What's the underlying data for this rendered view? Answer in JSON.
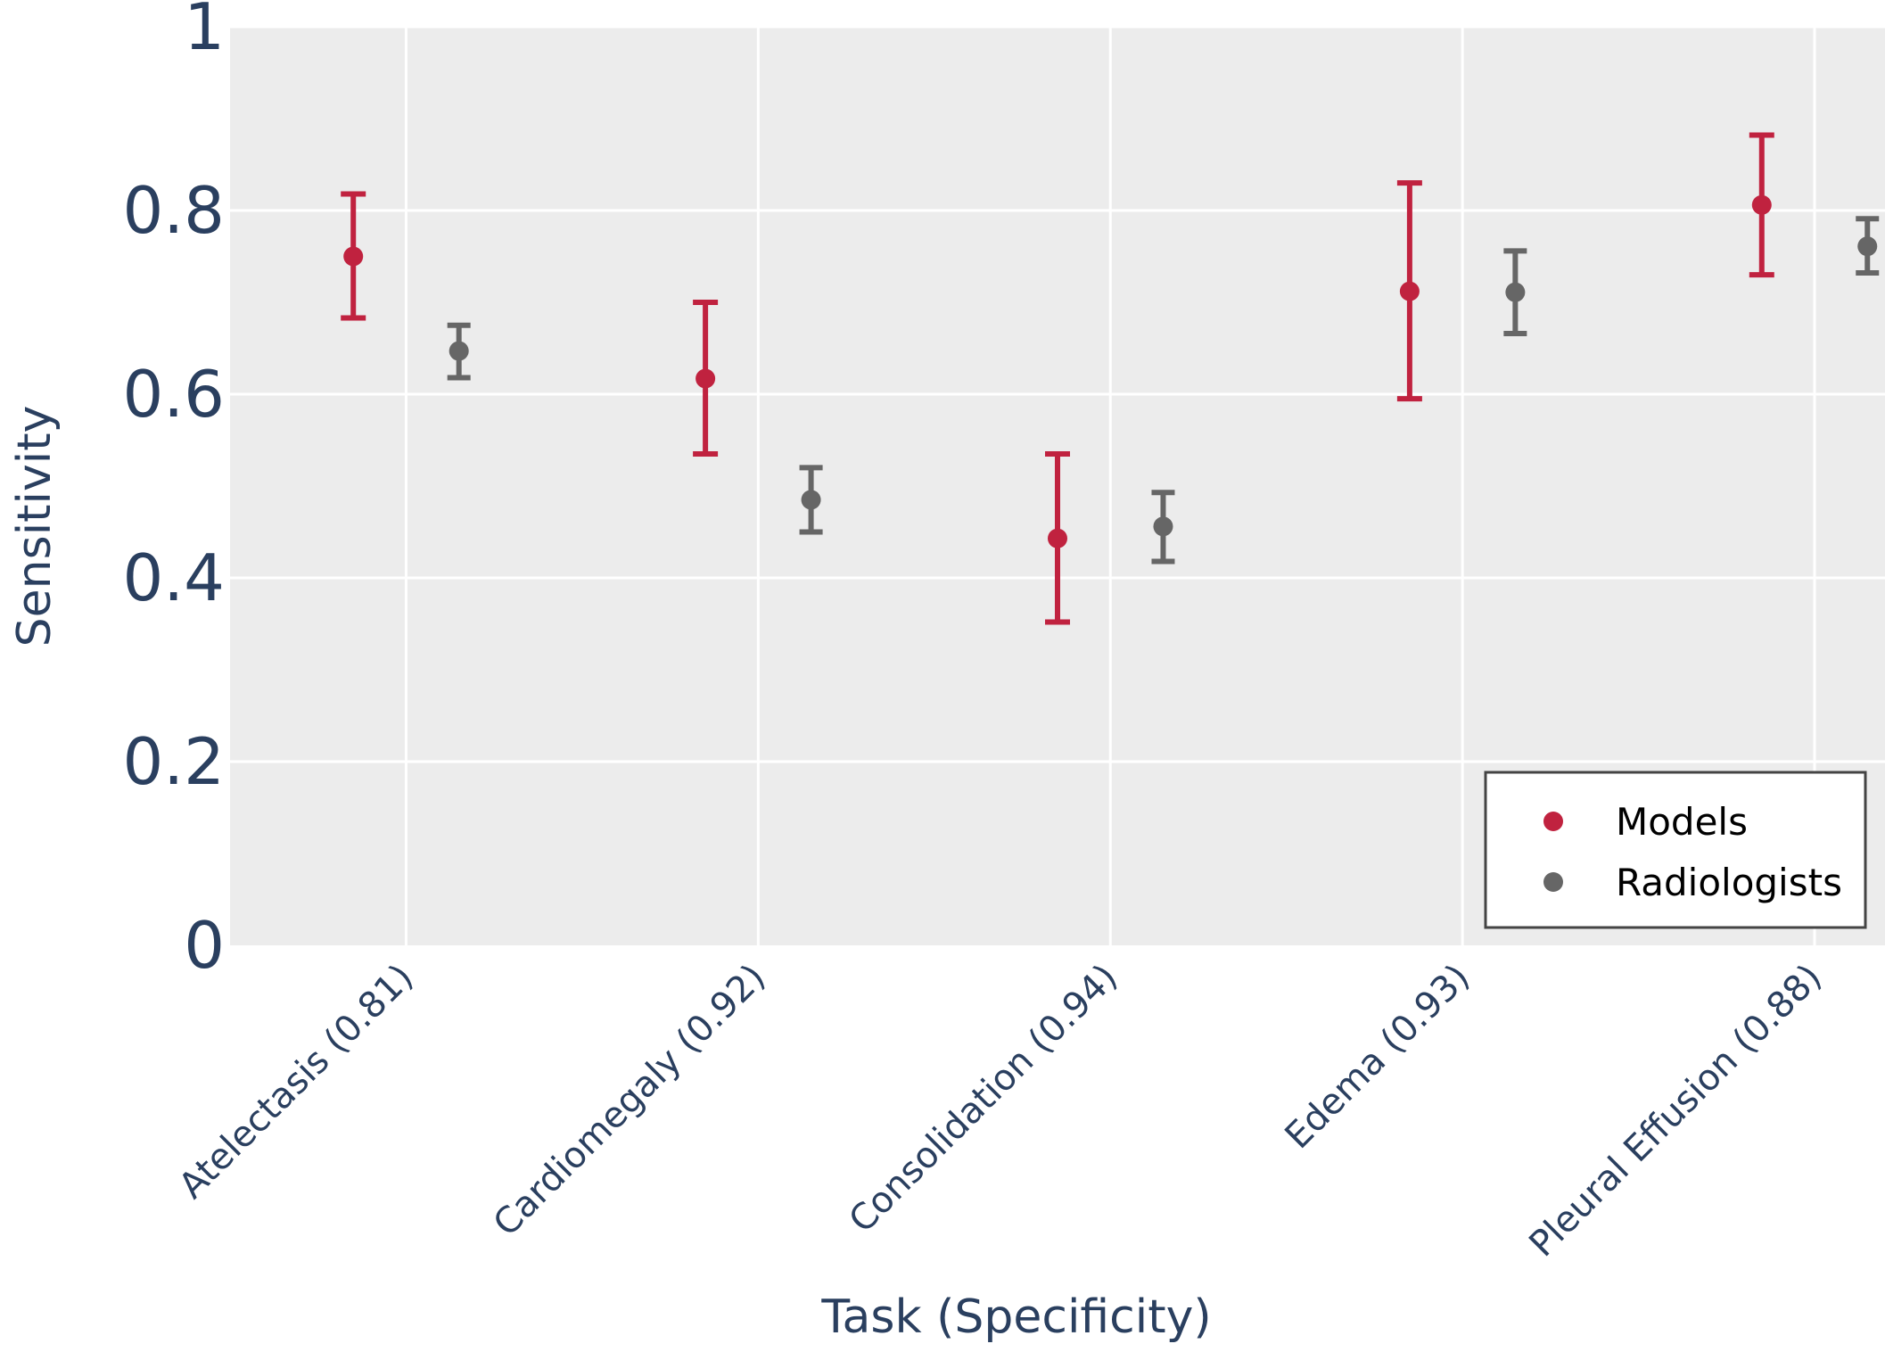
{
  "chart_data": {
    "type": "scatter",
    "title": "",
    "xlabel": "Task (Specificity)",
    "ylabel": "Sensitivity",
    "ylim": [
      0,
      1
    ],
    "yticks": [
      0,
      0.2,
      0.4,
      0.6,
      0.8,
      1
    ],
    "ytick_labels": [
      "0",
      "0.2",
      "0.4",
      "0.6",
      "0.8",
      "1"
    ],
    "grid": true,
    "categories": [
      "Atelectasis (0.81)",
      "Cardiomegaly (0.92)",
      "Consolidation (0.94)",
      "Edema (0.93)",
      "Pleural Effusion (0.88)"
    ],
    "series": [
      {
        "name": "Models",
        "color": "#c0223f",
        "values": [
          0.75,
          0.617,
          0.443,
          0.712,
          0.806
        ],
        "error_lower": [
          0.683,
          0.535,
          0.352,
          0.595,
          0.73
        ],
        "error_upper": [
          0.818,
          0.7,
          0.535,
          0.83,
          0.882
        ]
      },
      {
        "name": "Radiologists",
        "color": "#666666",
        "values": [
          0.647,
          0.485,
          0.456,
          0.711,
          0.761
        ],
        "error_lower": [
          0.618,
          0.45,
          0.418,
          0.666,
          0.732
        ],
        "error_upper": [
          0.675,
          0.52,
          0.493,
          0.756,
          0.791
        ]
      }
    ],
    "legend": {
      "position": "bottom-right",
      "entries": [
        "Models",
        "Radiologists"
      ]
    }
  },
  "colors": {
    "plot_background": "#ececec",
    "grid": "#ffffff",
    "axis_text": "#2a3f5f",
    "legend_border": "#444444"
  }
}
